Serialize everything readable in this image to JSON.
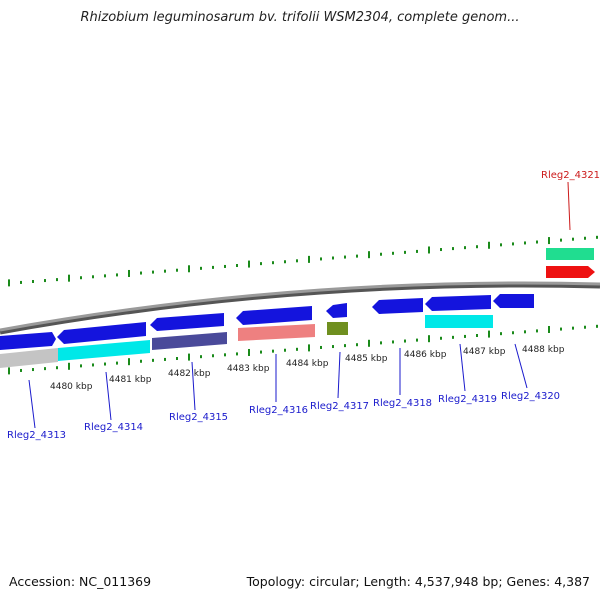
{
  "title": "Rhizobium leguminosarum bv. trifolii WSM2304, complete genom...",
  "footer": {
    "accession": "Accession: NC_011369",
    "topology": "Topology: circular; Length: 4,537,948 bp; Genes: 4,387"
  },
  "colors": {
    "backbone": "#8a8a8a",
    "tick": "#1a8a1a",
    "gene_label_blue": "#1a1acc",
    "gene_label_red": "#cc1a1a",
    "cds_blue": "#1414dd",
    "cyan": "#00e8e8",
    "gray": "#c0c0c0",
    "navy": "#4a4a9a",
    "salmon": "#ee8080",
    "olive": "#6f8f1f",
    "teal_green": "#20dd90",
    "red": "#ee1111"
  },
  "scale_labels": [
    "4480 kbp",
    "4481 kbp",
    "4482 kbp",
    "4483 kbp",
    "4484 kbp",
    "4485 kbp",
    "4486 kbp",
    "4487 kbp",
    "4488 kbp"
  ],
  "gene_labels": [
    {
      "name": "Rleg2_4313",
      "color": "blue"
    },
    {
      "name": "Rleg2_4314",
      "color": "blue"
    },
    {
      "name": "Rleg2_4315",
      "color": "blue"
    },
    {
      "name": "Rleg2_4316",
      "color": "blue"
    },
    {
      "name": "Rleg2_4317",
      "color": "blue"
    },
    {
      "name": "Rleg2_4318",
      "color": "blue"
    },
    {
      "name": "Rleg2_4319",
      "color": "blue"
    },
    {
      "name": "Rleg2_4320",
      "color": "blue"
    },
    {
      "name": "Rleg2_4321",
      "color": "red"
    }
  ]
}
